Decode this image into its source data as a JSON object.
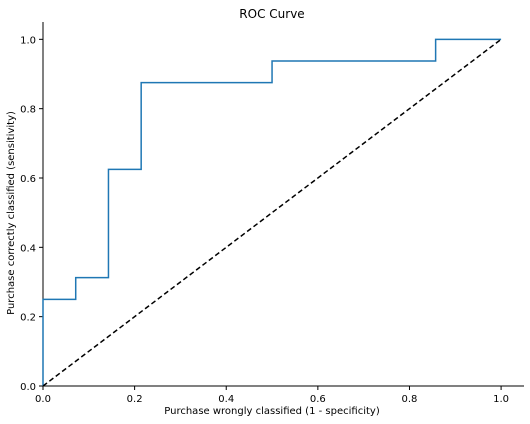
{
  "chart_data": {
    "type": "line",
    "title": "ROC Curve",
    "xlabel": "Purchase wrongly classified (1 - specificity)",
    "ylabel": "Purchase correctly classified (sensitivity)",
    "xlim": [
      0,
      1.05
    ],
    "ylim": [
      0,
      1.05
    ],
    "xticks": [
      0.0,
      0.2,
      0.4,
      0.6,
      0.8,
      1.0
    ],
    "yticks": [
      0.0,
      0.2,
      0.4,
      0.6,
      0.8,
      1.0
    ],
    "xtick_labels": [
      "0.0",
      "0.2",
      "0.4",
      "0.6",
      "0.8",
      "1.0"
    ],
    "ytick_labels": [
      "0.0",
      "0.2",
      "0.4",
      "0.6",
      "0.8",
      "1.0"
    ],
    "grid": false,
    "series": [
      {
        "color": "#1f77b4",
        "style": "solid",
        "x": [
          0.0,
          0.0,
          0.0714,
          0.0714,
          0.1429,
          0.1429,
          0.2143,
          0.2143,
          0.5,
          0.5,
          0.8571,
          0.8571,
          1.0
        ],
        "y": [
          0.0,
          0.25,
          0.25,
          0.3125,
          0.3125,
          0.625,
          0.625,
          0.875,
          0.875,
          0.9375,
          0.9375,
          1.0,
          1.0
        ]
      },
      {
        "color": "#000000",
        "style": "dashed",
        "x": [
          0.0,
          1.0
        ],
        "y": [
          0.0,
          1.0
        ]
      }
    ]
  }
}
